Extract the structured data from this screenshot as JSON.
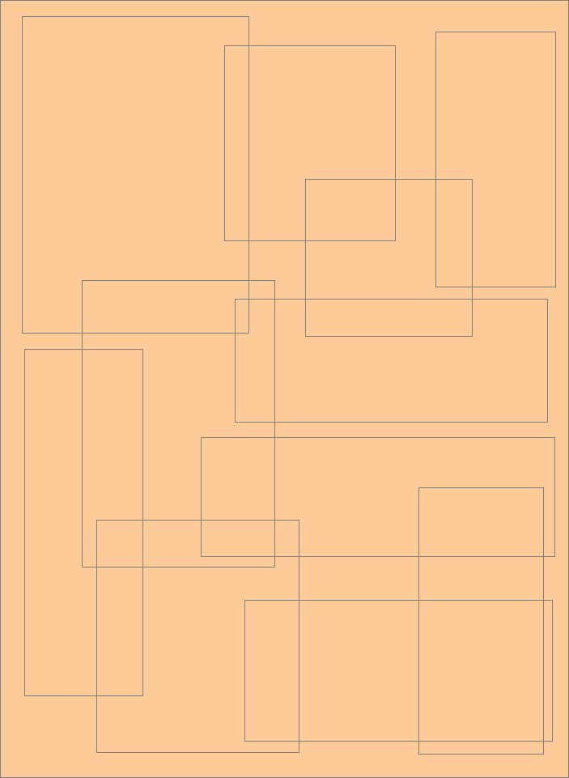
{
  "diagram": {
    "background_color": "#fdcb97",
    "outline_color": "#7f7f7f",
    "rectangle_count": 12
  }
}
